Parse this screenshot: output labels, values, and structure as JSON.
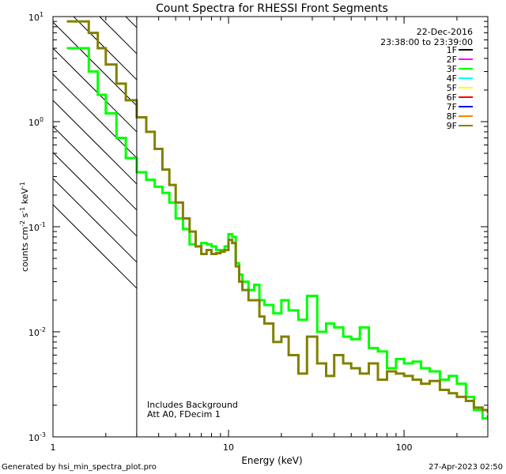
{
  "chart_data": {
    "type": "line",
    "title": "Count Spectra for RHESSI Front Segments",
    "xlabel": "Energy (keV)",
    "ylabel_main": "counts cm",
    "ylabel_sup1": "-2",
    "ylabel_mid": " s",
    "ylabel_sup2": "-1",
    "ylabel_end": " keV",
    "ylabel_sup3": "-1",
    "xscale": "log",
    "yscale": "log",
    "xlim": [
      1,
      300
    ],
    "ylim": [
      0.001,
      10
    ],
    "xticks": [
      {
        "v": 1,
        "label": "1"
      },
      {
        "v": 10,
        "label": "10"
      },
      {
        "v": 100,
        "label": "100"
      }
    ],
    "yticks": [
      {
        "v": 10,
        "base": "10",
        "exp": "1"
      },
      {
        "v": 1,
        "base": "10",
        "exp": "0"
      },
      {
        "v": 0.1,
        "base": "10",
        "exp": "-1"
      },
      {
        "v": 0.01,
        "base": "10",
        "exp": "-2"
      },
      {
        "v": 0.001,
        "base": "10",
        "exp": "-3"
      }
    ],
    "hatch_region_keV": [
      1,
      3
    ],
    "legend_position": "top-right",
    "date": "22-Dec-2016",
    "time_range": "23:38:00 to 23:39:00",
    "legend": [
      {
        "name": "1F",
        "color": "#000000"
      },
      {
        "name": "2F",
        "color": "#ff00ff"
      },
      {
        "name": "3F",
        "color": "#00ff00"
      },
      {
        "name": "4F",
        "color": "#00ffff"
      },
      {
        "name": "5F",
        "color": "#ffff00"
      },
      {
        "name": "6F",
        "color": "#ff0000"
      },
      {
        "name": "7F",
        "color": "#0000ff"
      },
      {
        "name": "8F",
        "color": "#ff8000"
      },
      {
        "name": "9F",
        "color": "#808000"
      }
    ],
    "annotations": [
      "Includes Background",
      "Att A0, FDecim 1"
    ],
    "series": [
      {
        "name": "3F",
        "color": "#00ff00",
        "x": [
          1.2,
          1.4,
          1.6,
          1.8,
          2.0,
          2.3,
          2.6,
          3.0,
          3.4,
          3.8,
          4.2,
          4.6,
          5.0,
          5.5,
          6.0,
          6.5,
          7.0,
          7.5,
          8.0,
          8.5,
          9.0,
          9.5,
          10.0,
          10.5,
          11.0,
          11.5,
          12.0,
          13.0,
          14.0,
          15.0,
          16.0,
          18.0,
          20.0,
          22.0,
          25.0,
          28.0,
          32.0,
          36.0,
          40.0,
          45.0,
          50.0,
          56.0,
          63.0,
          71.0,
          80.0,
          90.0,
          100.0,
          112.0,
          125.0,
          140.0,
          160.0,
          180.0,
          200.0,
          225.0,
          250.0,
          280.0,
          300.0
        ],
        "y": [
          5.0,
          5.0,
          3.0,
          1.8,
          1.2,
          0.7,
          0.45,
          0.33,
          0.28,
          0.24,
          0.21,
          0.17,
          0.12,
          0.095,
          0.068,
          0.065,
          0.07,
          0.068,
          0.065,
          0.06,
          0.06,
          0.065,
          0.085,
          0.08,
          0.045,
          0.035,
          0.03,
          0.025,
          0.028,
          0.02,
          0.018,
          0.015,
          0.02,
          0.016,
          0.013,
          0.022,
          0.01,
          0.012,
          0.011,
          0.009,
          0.0085,
          0.011,
          0.007,
          0.0065,
          0.0045,
          0.0055,
          0.005,
          0.0052,
          0.0045,
          0.0042,
          0.0035,
          0.0038,
          0.0032,
          0.0024,
          0.0018,
          0.0015,
          0.0016
        ]
      },
      {
        "name": "9F",
        "color": "#808000",
        "x": [
          1.2,
          1.4,
          1.6,
          1.8,
          2.0,
          2.3,
          2.6,
          3.0,
          3.4,
          3.8,
          4.2,
          4.6,
          5.0,
          5.5,
          6.0,
          6.5,
          7.0,
          7.5,
          8.0,
          8.5,
          9.0,
          9.5,
          10.0,
          10.5,
          11.0,
          11.5,
          12.0,
          13.0,
          14.0,
          15.0,
          16.0,
          18.0,
          20.0,
          22.0,
          25.0,
          28.0,
          32.0,
          36.0,
          40.0,
          45.0,
          50.0,
          56.0,
          63.0,
          71.0,
          80.0,
          90.0,
          100.0,
          112.0,
          125.0,
          140.0,
          160.0,
          180.0,
          200.0,
          225.0,
          250.0,
          280.0,
          300.0
        ],
        "y": [
          9.0,
          9.0,
          7.0,
          5.0,
          3.5,
          2.3,
          1.6,
          1.1,
          0.8,
          0.55,
          0.35,
          0.25,
          0.17,
          0.12,
          0.09,
          0.065,
          0.055,
          0.06,
          0.055,
          0.056,
          0.058,
          0.06,
          0.075,
          0.07,
          0.042,
          0.03,
          0.025,
          0.02,
          0.02,
          0.014,
          0.012,
          0.008,
          0.009,
          0.006,
          0.004,
          0.009,
          0.005,
          0.0038,
          0.006,
          0.005,
          0.0045,
          0.004,
          0.005,
          0.0035,
          0.0042,
          0.004,
          0.0038,
          0.0035,
          0.0032,
          0.0034,
          0.0028,
          0.0026,
          0.0024,
          0.0022,
          0.0019,
          0.0018,
          0.0017
        ]
      }
    ]
  },
  "footer": {
    "generated_by": "Generated by hsi_min_spectra_plot.pro",
    "timestamp": "27-Apr-2023 02:50"
  }
}
